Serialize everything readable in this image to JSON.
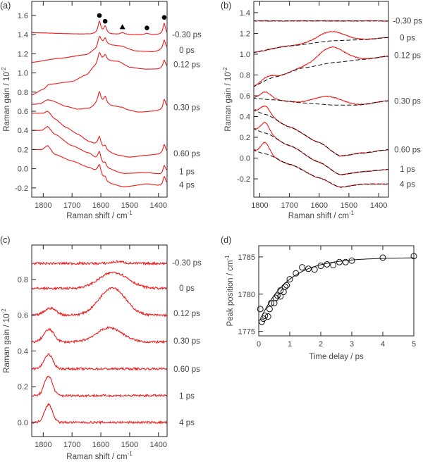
{
  "chart_data": [
    {
      "id": "a",
      "type": "line",
      "panel_label": "(a)",
      "xlabel": "Raman shift / cm",
      "xlabel_sup": "-1",
      "ylabel": "Raman gain / 10",
      "ylabel_sup": "-2",
      "xlim": [
        1840,
        1370
      ],
      "ylim": [
        -0.297,
        1.747
      ],
      "xticks": [
        1800,
        1700,
        1600,
        1500,
        1400
      ],
      "yticks": [
        -0.2,
        0.0,
        0.2,
        0.4,
        0.6,
        0.8,
        1.0,
        1.2,
        1.4,
        1.6
      ],
      "ytick_labels": [
        "-0.2",
        "0.0",
        "0.2",
        "0.4",
        "0.6",
        "0.8",
        "1.0",
        "1.2",
        "1.4",
        "1.6"
      ],
      "color": "#ee1c1c",
      "markers": [
        {
          "shape": "circle",
          "x": 1605,
          "y": 1.6
        },
        {
          "shape": "circle",
          "x": 1585,
          "y": 1.54
        },
        {
          "shape": "triangle",
          "x": 1525,
          "y": 1.48
        },
        {
          "shape": "circle",
          "x": 1440,
          "y": 1.47
        },
        {
          "shape": "circle",
          "x": 1380,
          "y": 1.58
        }
      ],
      "series": [
        {
          "name": "-0.30 ps",
          "label_at": 1.4,
          "baseline": [
            [
              1840,
              1.42
            ],
            [
              1650,
              1.405
            ],
            [
              1500,
              1.4
            ],
            [
              1370,
              1.4
            ]
          ],
          "peaks": [
            [
              1605,
              0.13,
              6
            ],
            [
              1585,
              0.08,
              6
            ],
            [
              1525,
              0.02,
              8
            ],
            [
              1440,
              0.012,
              8
            ],
            [
              1380,
              0.12,
              5
            ]
          ]
        },
        {
          "name": "0 ps",
          "label_at": 1.24,
          "baseline": [
            [
              1840,
              1.11
            ],
            [
              1750,
              1.15
            ],
            [
              1650,
              1.19
            ],
            [
              1620,
              1.24
            ],
            [
              1600,
              1.3
            ],
            [
              1530,
              1.28
            ],
            [
              1480,
              1.23
            ],
            [
              1420,
              1.22
            ],
            [
              1370,
              1.25
            ]
          ],
          "peaks": [
            [
              1605,
              0.09,
              6
            ],
            [
              1585,
              0.06,
              6
            ],
            [
              1380,
              0.1,
              5
            ]
          ]
        },
        {
          "name": "0.12 ps",
          "label_at": 1.09,
          "baseline": [
            [
              1840,
              0.77
            ],
            [
              1800,
              0.83
            ],
            [
              1780,
              0.88
            ],
            [
              1700,
              0.91
            ],
            [
              1650,
              0.98
            ],
            [
              1620,
              1.07
            ],
            [
              1605,
              1.13
            ],
            [
              1540,
              1.12
            ],
            [
              1500,
              1.06
            ],
            [
              1450,
              1.04
            ],
            [
              1400,
              1.04
            ],
            [
              1370,
              1.06
            ]
          ],
          "peaks": [
            [
              1605,
              0.08,
              6
            ],
            [
              1585,
              0.06,
              6
            ],
            [
              1380,
              0.08,
              5
            ]
          ]
        },
        {
          "name": "0.30 ps",
          "label_at": 0.64,
          "baseline": [
            [
              1840,
              0.67
            ],
            [
              1810,
              0.68
            ],
            [
              1785,
              0.72
            ],
            [
              1770,
              0.71
            ],
            [
              1720,
              0.65
            ],
            [
              1680,
              0.62
            ],
            [
              1640,
              0.63
            ],
            [
              1610,
              0.68
            ],
            [
              1550,
              0.65
            ],
            [
              1500,
              0.61
            ],
            [
              1470,
              0.59
            ],
            [
              1420,
              0.6
            ],
            [
              1390,
              0.61
            ],
            [
              1370,
              0.64
            ]
          ],
          "peaks": [
            [
              1605,
              0.12,
              6
            ],
            [
              1585,
              0.08,
              6
            ],
            [
              1525,
              0.01,
              8
            ],
            [
              1380,
              0.1,
              5
            ]
          ]
        },
        {
          "name": "0.60 ps",
          "label_at": 0.16,
          "baseline": [
            [
              1840,
              0.58
            ],
            [
              1800,
              0.58
            ],
            [
              1785,
              0.6
            ],
            [
              1760,
              0.52
            ],
            [
              1720,
              0.43
            ],
            [
              1680,
              0.36
            ],
            [
              1640,
              0.28
            ],
            [
              1615,
              0.25
            ],
            [
              1580,
              0.18
            ],
            [
              1540,
              0.14
            ],
            [
              1500,
              0.12
            ],
            [
              1440,
              0.14
            ],
            [
              1400,
              0.15
            ],
            [
              1370,
              0.17
            ]
          ],
          "peaks": [
            [
              1605,
              0.1,
              6
            ],
            [
              1585,
              0.05,
              6
            ],
            [
              1380,
              0.09,
              5
            ]
          ]
        },
        {
          "name": "1 ps",
          "label_at": -0.03,
          "baseline": [
            [
              1840,
              0.4
            ],
            [
              1805,
              0.4
            ],
            [
              1785,
              0.44
            ],
            [
              1760,
              0.36
            ],
            [
              1700,
              0.24
            ],
            [
              1640,
              0.16
            ],
            [
              1615,
              0.1
            ],
            [
              1580,
              0.0
            ],
            [
              1520,
              -0.05
            ],
            [
              1440,
              -0.04
            ],
            [
              1390,
              -0.06
            ],
            [
              1370,
              -0.03
            ]
          ],
          "peaks": [
            [
              1605,
              0.1,
              6
            ],
            [
              1585,
              0.05,
              6
            ],
            [
              1380,
              0.08,
              5
            ]
          ]
        },
        {
          "name": "4 ps",
          "label_at": -0.17,
          "baseline": [
            [
              1840,
              0.2
            ],
            [
              1805,
              0.2
            ],
            [
              1785,
              0.24
            ],
            [
              1760,
              0.15
            ],
            [
              1700,
              0.08
            ],
            [
              1640,
              0.01
            ],
            [
              1615,
              -0.03
            ],
            [
              1580,
              -0.15
            ],
            [
              1520,
              -0.19
            ],
            [
              1440,
              -0.16
            ],
            [
              1390,
              -0.18
            ],
            [
              1370,
              -0.16
            ]
          ],
          "peaks": [
            [
              1605,
              0.1,
              6
            ],
            [
              1585,
              0.05,
              6
            ],
            [
              1380,
              0.09,
              5
            ]
          ]
        }
      ]
    },
    {
      "id": "b",
      "type": "line",
      "panel_label": "(b)",
      "xlabel": "Raman shift / cm",
      "xlabel_sup": "-1",
      "ylabel": "Raman gain / 10",
      "ylabel_sup": "-2",
      "xlim": [
        1820,
        1367
      ],
      "ylim": [
        -0.376,
        1.508
      ],
      "xticks": [
        1800,
        1700,
        1600,
        1500,
        1400
      ],
      "yticks": [
        -0.2,
        0.0,
        0.2,
        0.4,
        0.6,
        0.8,
        1.0,
        1.2,
        1.4
      ],
      "ytick_labels": [
        "-0.2",
        "0.0",
        "0.2",
        "0.4",
        "0.6",
        "0.8",
        "1.0",
        "1.2",
        "1.4"
      ],
      "color": "#ee1c1c",
      "fit_color": "#111111",
      "series": [
        {
          "name": "-0.30 ps",
          "label_at": 1.32,
          "baseline": [
            [
              1840,
              1.32
            ],
            [
              1370,
              1.32
            ]
          ],
          "bumps": []
        },
        {
          "name": "0 ps",
          "label_at": 1.16,
          "baseline": [
            [
              1840,
              1.01
            ],
            [
              1700,
              1.08
            ],
            [
              1550,
              1.13
            ],
            [
              1450,
              1.14
            ],
            [
              1370,
              1.16
            ]
          ],
          "bumps": [
            [
              1560,
              0.09,
              45
            ]
          ]
        },
        {
          "name": "0.12 ps",
          "label_at": 0.99,
          "baseline": [
            [
              1840,
              0.67
            ],
            [
              1750,
              0.78
            ],
            [
              1650,
              0.87
            ],
            [
              1550,
              0.92
            ],
            [
              1450,
              0.95
            ],
            [
              1370,
              0.98
            ]
          ],
          "bumps": [
            [
              1560,
              0.15,
              45
            ],
            [
              1775,
              0.03,
              20
            ]
          ]
        },
        {
          "name": "0.30 ps",
          "label_at": 0.55,
          "baseline": [
            [
              1840,
              0.58
            ],
            [
              1750,
              0.56
            ],
            [
              1650,
              0.53
            ],
            [
              1550,
              0.51
            ],
            [
              1470,
              0.51
            ],
            [
              1370,
              0.55
            ]
          ],
          "bumps": [
            [
              1780,
              0.07,
              18
            ],
            [
              1570,
              0.08,
              45
            ]
          ]
        },
        {
          "name": "0.60 ps",
          "label_at": 0.08,
          "baseline": [
            [
              1840,
              0.48
            ],
            [
              1780,
              0.42
            ],
            [
              1700,
              0.3
            ],
            [
              1600,
              0.15
            ],
            [
              1530,
              0.02
            ],
            [
              1450,
              0.05
            ],
            [
              1370,
              0.08
            ]
          ],
          "bumps": [
            [
              1782,
              0.08,
              15
            ]
          ]
        },
        {
          "name": "1 ps",
          "label_at": -0.105,
          "baseline": [
            [
              1840,
              0.3
            ],
            [
              1780,
              0.24
            ],
            [
              1700,
              0.12
            ],
            [
              1600,
              -0.04
            ],
            [
              1530,
              -0.16
            ],
            [
              1450,
              -0.13
            ],
            [
              1370,
              -0.11
            ]
          ],
          "bumps": [
            [
              1782,
              0.1,
              14
            ]
          ]
        },
        {
          "name": "4 ps",
          "label_at": -0.25,
          "baseline": [
            [
              1840,
              0.09
            ],
            [
              1780,
              0.04
            ],
            [
              1700,
              -0.06
            ],
            [
              1600,
              -0.19
            ],
            [
              1530,
              -0.28
            ],
            [
              1450,
              -0.25
            ],
            [
              1370,
              -0.25
            ]
          ],
          "bumps": [
            [
              1782,
              0.11,
              14
            ]
          ]
        }
      ]
    },
    {
      "id": "c",
      "type": "line",
      "panel_label": "(c)",
      "xlabel": "Raman shift / cm",
      "xlabel_sup": "-1",
      "ylabel": "Raman gain / 10",
      "ylabel_sup": "-2",
      "xlim": [
        1840,
        1370
      ],
      "ylim": [
        -0.079,
        0.993
      ],
      "xticks": [
        1800,
        1700,
        1600,
        1500,
        1400
      ],
      "yticks": [
        0.0,
        0.2,
        0.4,
        0.6,
        0.8
      ],
      "ytick_labels": [
        "0.0",
        "0.2",
        "0.4",
        "0.6",
        "0.8"
      ],
      "color": "#ee1c1c",
      "series": [
        {
          "name": "-0.30 ps",
          "label_at": 0.895,
          "offset": 0.89,
          "bumps": [
            [
              1540,
              0.01,
              20
            ]
          ]
        },
        {
          "name": "0 ps",
          "label_at": 0.753,
          "offset": 0.75,
          "bumps": [
            [
              1555,
              0.09,
              50
            ]
          ]
        },
        {
          "name": "0.12 ps",
          "label_at": 0.61,
          "offset": 0.6,
          "bumps": [
            [
              1560,
              0.155,
              45
            ],
            [
              1775,
              0.04,
              20
            ]
          ]
        },
        {
          "name": "0.30 ps",
          "label_at": 0.457,
          "offset": 0.45,
          "bumps": [
            [
              1780,
              0.07,
              18
            ],
            [
              1570,
              0.08,
              45
            ]
          ]
        },
        {
          "name": "0.60 ps",
          "label_at": 0.3,
          "offset": 0.3,
          "bumps": [
            [
              1782,
              0.08,
              15
            ]
          ]
        },
        {
          "name": "1 ps",
          "label_at": 0.15,
          "offset": 0.15,
          "bumps": [
            [
              1782,
              0.11,
              14
            ]
          ]
        },
        {
          "name": "4 ps",
          "label_at": 0.0,
          "offset": 0.0,
          "bumps": [
            [
              1782,
              0.1,
              14
            ]
          ]
        }
      ]
    },
    {
      "id": "d",
      "type": "scatter",
      "panel_label": "(d)",
      "xlabel": "Time delay / ps",
      "ylabel": "Peak position / cm",
      "ylabel_sup": "-1",
      "xlim": [
        0,
        5
      ],
      "ylim": [
        1774.4,
        1786.5
      ],
      "xticks": [
        0,
        1,
        2,
        3,
        4,
        5
      ],
      "xtick_labels": [
        "0",
        "1",
        "2",
        "3",
        "4",
        "5"
      ],
      "yticks": [
        1775,
        1780,
        1785
      ],
      "ytick_labels": [
        "1775",
        "1780",
        "1785"
      ],
      "points": [
        [
          0.05,
          1778
        ],
        [
          0.1,
          1776.3
        ],
        [
          0.15,
          1776.7
        ],
        [
          0.2,
          1777.1
        ],
        [
          0.3,
          1777
        ],
        [
          0.35,
          1778
        ],
        [
          0.4,
          1778.8
        ],
        [
          0.5,
          1778.8
        ],
        [
          0.55,
          1779.5
        ],
        [
          0.6,
          1779.8
        ],
        [
          0.7,
          1779.7
        ],
        [
          0.7,
          1780.5
        ],
        [
          0.8,
          1780.3
        ],
        [
          0.85,
          1781
        ],
        [
          0.9,
          1781.2
        ],
        [
          1.0,
          1782
        ],
        [
          1.2,
          1782.8
        ],
        [
          1.4,
          1783.6
        ],
        [
          1.6,
          1783.4
        ],
        [
          1.8,
          1783.3
        ],
        [
          2.0,
          1783.8
        ],
        [
          2.2,
          1784
        ],
        [
          2.4,
          1783.9
        ],
        [
          2.6,
          1784.3
        ],
        [
          2.8,
          1784.3
        ],
        [
          3.0,
          1784.5
        ],
        [
          4.0,
          1784.9
        ],
        [
          5.0,
          1785.1
        ]
      ],
      "fit": {
        "model": "y0 - A*exp(-t/tau)",
        "y0": 1784.9,
        "A": 8.8,
        "tau": 0.9,
        "t_start": 0.1
      }
    }
  ]
}
